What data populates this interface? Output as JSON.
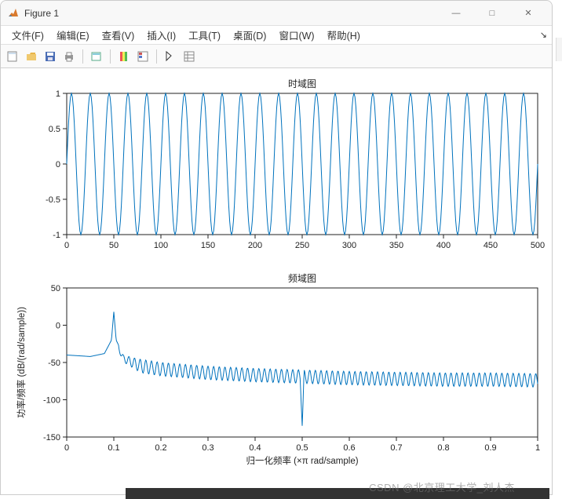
{
  "window": {
    "title": "Figure 1",
    "controls": {
      "min": "—",
      "max": "□",
      "close": "✕"
    }
  },
  "menu": {
    "file": "文件(F)",
    "edit": "编辑(E)",
    "view": "查看(V)",
    "insert": "插入(I)",
    "tools": "工具(T)",
    "desktop": "桌面(D)",
    "window": "窗口(W)",
    "help": "帮助(H)"
  },
  "chart_top": {
    "title": "时域图",
    "title_fontsize": 12,
    "xlim": [
      0,
      500
    ],
    "ylim": [
      -1,
      1
    ],
    "xticks": [
      0,
      50,
      100,
      150,
      200,
      250,
      300,
      350,
      400,
      450,
      500
    ],
    "yticks": [
      -1,
      -0.5,
      0,
      0.5,
      1
    ],
    "line_color": "#0072bd",
    "axis_color": "#222222",
    "background": "#ffffff",
    "signal": {
      "type": "sine",
      "amplitude": 1.0,
      "period_samples": 20,
      "n_samples": 500
    }
  },
  "chart_bottom": {
    "title": "频域图",
    "title_fontsize": 12,
    "xlabel": "归一化频率  (×π rad/sample)",
    "ylabel": "功率/频率 (dB/(rad/sample))",
    "xlim": [
      0,
      1
    ],
    "ylim": [
      -150,
      50
    ],
    "xticks": [
      0,
      0.1,
      0.2,
      0.3,
      0.4,
      0.5,
      0.6,
      0.7,
      0.8,
      0.9,
      1
    ],
    "yticks": [
      -150,
      -100,
      -50,
      0,
      50
    ],
    "line_color": "#0072bd",
    "axis_color": "#222222",
    "background": "#ffffff",
    "psd": {
      "baseline": [
        [
          0,
          -40
        ],
        [
          0.05,
          -42
        ],
        [
          0.08,
          -38
        ],
        [
          0.095,
          -20
        ],
        [
          0.1,
          18
        ],
        [
          0.105,
          -20
        ],
        [
          0.12,
          -40
        ],
        [
          0.15,
          -45
        ],
        [
          0.2,
          -50
        ],
        [
          0.3,
          -55
        ],
        [
          0.4,
          -58
        ],
        [
          0.5,
          -60
        ],
        [
          0.6,
          -62
        ],
        [
          0.7,
          -63
        ],
        [
          0.8,
          -64
        ],
        [
          0.9,
          -64
        ],
        [
          1,
          -65
        ]
      ],
      "ripple_depth": 18,
      "ripple_period": 0.012,
      "notch": {
        "x": 0.5,
        "depth": -135
      }
    }
  },
  "watermark": "CSDN @北京理工大学_刘人杰"
}
